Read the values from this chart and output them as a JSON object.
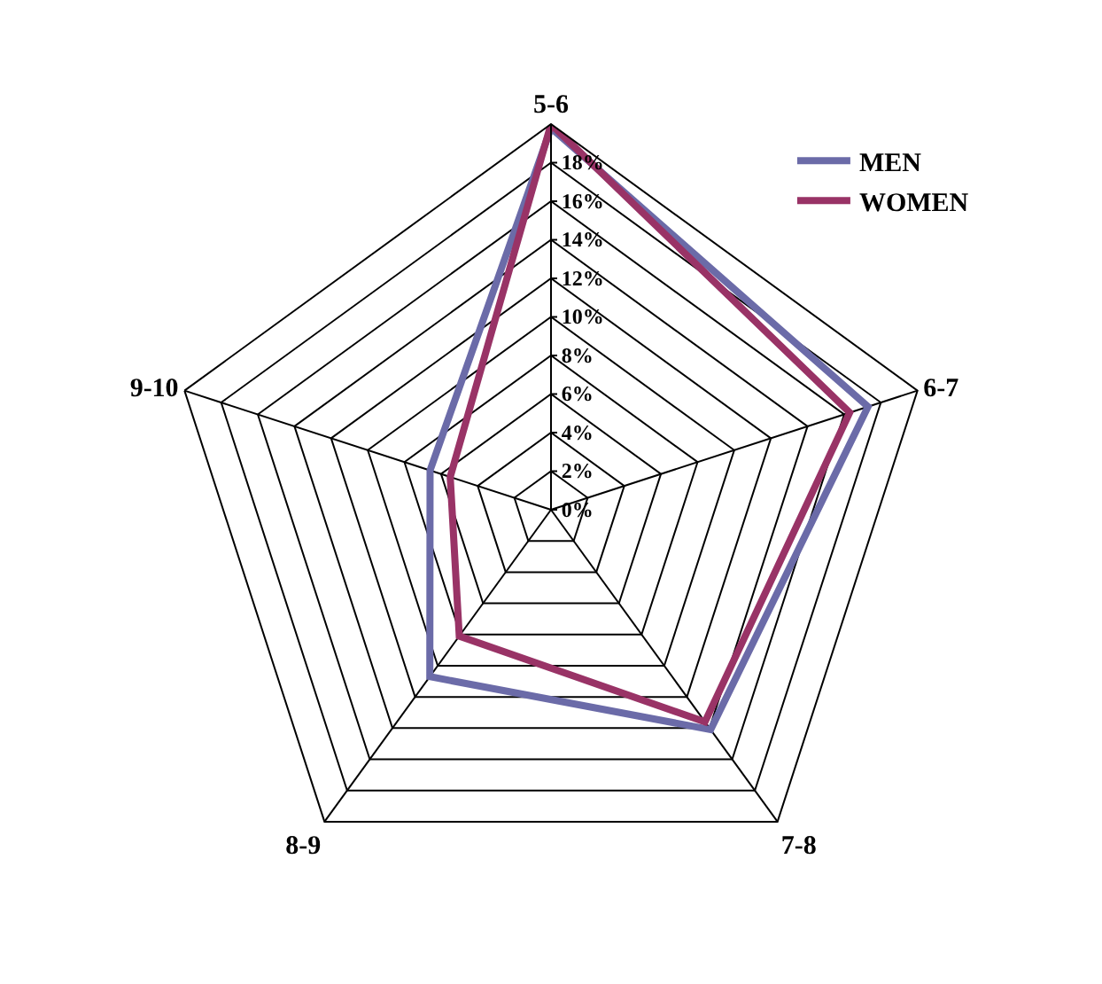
{
  "chart_data": {
    "type": "radar",
    "categories": [
      "5-6",
      "6-7",
      "7-8",
      "8-9",
      "9-10"
    ],
    "series": [
      {
        "name": "MEN",
        "color": "#6b6ba8",
        "values": [
          19.8,
          17.3,
          14.1,
          10.7,
          6.6
        ]
      },
      {
        "name": "WOMEN",
        "color": "#993366",
        "values": [
          20,
          16.3,
          13.6,
          8.1,
          5.5
        ]
      }
    ],
    "ylim": [
      0,
      20
    ],
    "yticks": [
      {
        "value": 0,
        "label": "0%"
      },
      {
        "value": 2,
        "label": "2%"
      },
      {
        "value": 4,
        "label": "4%"
      },
      {
        "value": 6,
        "label": "6%"
      },
      {
        "value": 8,
        "label": "8%"
      },
      {
        "value": 10,
        "label": "10%"
      },
      {
        "value": 12,
        "label": "12%"
      },
      {
        "value": 14,
        "label": "14%"
      },
      {
        "value": 16,
        "label": "16%"
      },
      {
        "value": 18,
        "label": "18%"
      }
    ],
    "grid": true,
    "legend": "top right",
    "marker": "none",
    "line_style": "solid"
  }
}
